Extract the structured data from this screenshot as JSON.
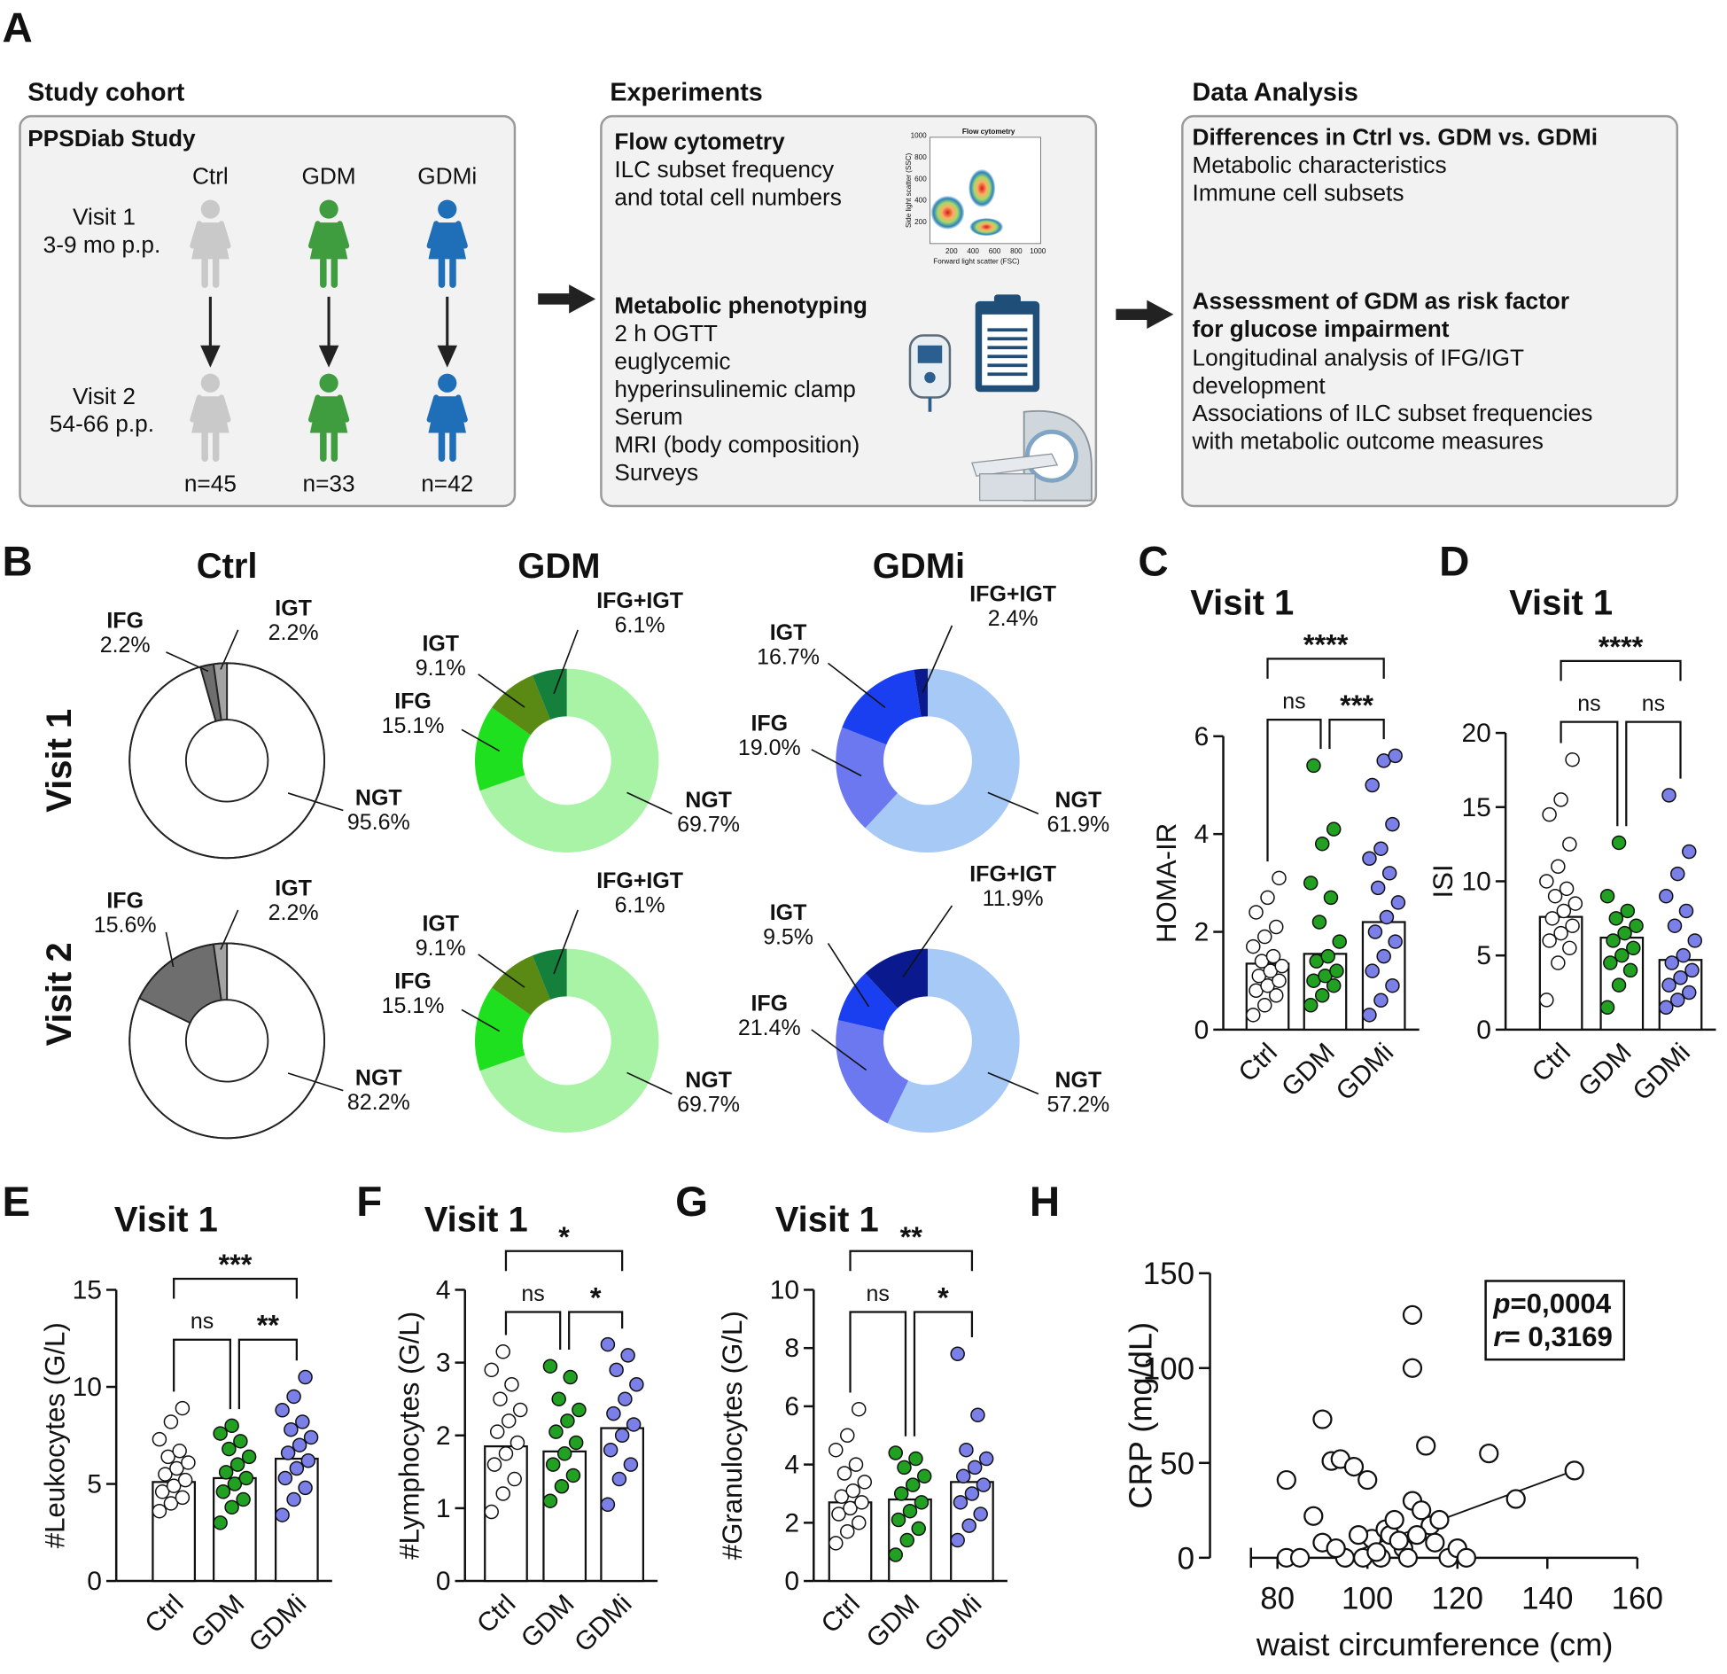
{
  "panel_labels": [
    "A",
    "B",
    "C",
    "D",
    "E",
    "F",
    "G",
    "H"
  ],
  "panel_a": {
    "sections": [
      "Study cohort",
      "Experiments",
      "Data Analysis"
    ],
    "cohort": {
      "title": "PPSDiab Study",
      "groups": [
        "Ctrl",
        "GDM",
        "GDMi"
      ],
      "group_colors": [
        "#c9c9c9",
        "#3f9d3f",
        "#1f6fb8"
      ],
      "visits": [
        {
          "name": "Visit 1",
          "time": "3-9 mo p.p."
        },
        {
          "name": "Visit 2",
          "time": "54-66 p.p."
        }
      ],
      "n": [
        "n=45",
        "n=33",
        "n=42"
      ]
    },
    "experiments": [
      {
        "heading": "Flow cytometry",
        "lines": [
          "ILC subset frequency",
          "and total cell numbers"
        ]
      },
      {
        "heading": "Metabolic phenotyping",
        "lines": [
          "2 h OGTT",
          "euglycemic",
          "hyperinsulinemic clamp",
          "Serum",
          "MRI (body composition)",
          "Surveys"
        ]
      }
    ],
    "flow_inset": {
      "title": "Flow cytometry",
      "xlabel": "Forward light scatter (FSC)",
      "ylabel": "Side light scatter (SSC)",
      "xticks": [
        "200",
        "400",
        "600",
        "800",
        "1000"
      ],
      "yticks": [
        "200",
        "400",
        "600",
        "800",
        "1000"
      ]
    },
    "analysis": [
      {
        "heading": [
          "Differences in Ctrl vs. GDM vs. GDMi"
        ],
        "lines": [
          "Metabolic characteristics",
          "Immune cell subsets"
        ]
      },
      {
        "heading": [
          "Assessment of GDM as risk factor",
          "for glucose impairment"
        ],
        "lines": [
          "Longitudinal analysis of IFG/IGT",
          "development",
          "Associations of ILC subset frequencies",
          "with metabolic outcome measures"
        ]
      }
    ]
  },
  "panel_b": {
    "column_titles": [
      "Ctrl",
      "GDM",
      "GDMi"
    ],
    "row_titles": [
      "Visit 1",
      "Visit 2"
    ]
  },
  "chart_data": [
    {
      "type": "pie",
      "categories": [
        "NGT",
        "IFG",
        "IGT"
      ],
      "values": [
        95.6,
        2.2,
        2.2
      ],
      "value_labels": [
        "95.6%",
        "2.2%",
        "2.2%"
      ],
      "colors": [
        "#ffffff",
        "#6e6e6e",
        "#a3a3a3"
      ]
    },
    {
      "type": "pie",
      "categories": [
        "NGT",
        "IFG",
        "IGT",
        "IFG+IGT"
      ],
      "values": [
        69.7,
        15.1,
        9.1,
        6.1
      ],
      "value_labels": [
        "69.7%",
        "15.1%",
        "9.1%",
        "6.1%"
      ],
      "colors": [
        "#a9f3a6",
        "#1fe01f",
        "#5a8a14",
        "#14803c"
      ]
    },
    {
      "type": "pie",
      "categories": [
        "NGT",
        "IFG",
        "IGT",
        "IFG+IGT"
      ],
      "values": [
        61.9,
        19.0,
        16.7,
        2.4
      ],
      "value_labels": [
        "61.9%",
        "19.0%",
        "16.7%",
        "2.4%"
      ],
      "colors": [
        "#a7c9f5",
        "#6b78ef",
        "#1a3ff0",
        "#0a1a8e"
      ]
    },
    {
      "type": "pie",
      "categories": [
        "NGT",
        "IFG",
        "IGT"
      ],
      "values": [
        82.2,
        15.6,
        2.2
      ],
      "value_labels": [
        "82.2%",
        "15.6%",
        "2.2%"
      ],
      "colors": [
        "#ffffff",
        "#6e6e6e",
        "#a3a3a3"
      ]
    },
    {
      "type": "pie",
      "categories": [
        "NGT",
        "IFG",
        "IGT",
        "IFG+IGT"
      ],
      "values": [
        69.7,
        15.1,
        9.1,
        6.1
      ],
      "value_labels": [
        "69.7%",
        "15.1%",
        "9.1%",
        "6.1%"
      ],
      "colors": [
        "#a9f3a6",
        "#1fe01f",
        "#5a8a14",
        "#14803c"
      ]
    },
    {
      "type": "pie",
      "categories": [
        "NGT",
        "IFG",
        "IGT",
        "IFG+IGT"
      ],
      "values": [
        57.2,
        21.4,
        9.5,
        11.9
      ],
      "value_labels": [
        "57.2%",
        "21.4%",
        "9.5%",
        "11.9%"
      ],
      "colors": [
        "#a7c9f5",
        "#6b78ef",
        "#1a3ff0",
        "#0a1a8e"
      ]
    },
    {
      "type": "bar",
      "title": "Visit 1",
      "ylabel": "HOMA-IR",
      "categories": [
        "Ctrl",
        "GDM",
        "GDMi"
      ],
      "values": [
        1.35,
        1.55,
        2.2
      ],
      "colors": [
        "#ffffff",
        "#22a022",
        "#7b7fe8"
      ],
      "points": [
        [
          0.3,
          0.5,
          0.7,
          0.8,
          0.9,
          1.0,
          1.1,
          1.2,
          1.3,
          1.4,
          1.5,
          1.7,
          1.9,
          2.1,
          2.4,
          2.7,
          3.1
        ],
        [
          0.5,
          0.7,
          0.9,
          1.0,
          1.1,
          1.2,
          1.4,
          1.5,
          1.8,
          2.2,
          2.7,
          3.0,
          3.8,
          4.1,
          5.4
        ],
        [
          0.3,
          0.6,
          0.9,
          1.2,
          1.5,
          1.8,
          2.0,
          2.3,
          2.6,
          2.9,
          3.2,
          3.5,
          3.7,
          4.2,
          5.0,
          5.5,
          5.6
        ]
      ],
      "ylim": [
        0,
        6
      ],
      "yticks": [
        0,
        2,
        4,
        6
      ],
      "significance": [
        {
          "groups": [
            "Ctrl",
            "GDM"
          ],
          "label": "ns"
        },
        {
          "groups": [
            "GDM",
            "GDMi"
          ],
          "label": "***"
        },
        {
          "groups": [
            "Ctrl",
            "GDMi"
          ],
          "label": "****"
        }
      ]
    },
    {
      "type": "bar",
      "title": "Visit 1",
      "ylabel": "ISI",
      "categories": [
        "Ctrl",
        "GDM",
        "GDMi"
      ],
      "values": [
        7.6,
        6.2,
        4.7
      ],
      "colors": [
        "#ffffff",
        "#22a022",
        "#7b7fe8"
      ],
      "points": [
        [
          2.0,
          4.5,
          5.5,
          6.0,
          6.5,
          7.0,
          7.5,
          8.0,
          8.5,
          9.0,
          9.5,
          10.0,
          11.0,
          12.5,
          14.5,
          15.5,
          18.2
        ],
        [
          1.5,
          3.0,
          4.0,
          4.5,
          5.0,
          5.5,
          6.0,
          6.5,
          7.0,
          7.5,
          8.0,
          9.0,
          12.6
        ],
        [
          1.5,
          2.0,
          2.5,
          3.0,
          3.5,
          4.0,
          4.5,
          5.0,
          6.0,
          7.0,
          8.0,
          9.0,
          10.5,
          12.0,
          15.8
        ]
      ],
      "ylim": [
        0,
        20
      ],
      "yticks": [
        0,
        5,
        10,
        15,
        20
      ],
      "significance": [
        {
          "groups": [
            "Ctrl",
            "GDM"
          ],
          "label": "ns"
        },
        {
          "groups": [
            "GDM",
            "GDMi"
          ],
          "label": "ns"
        },
        {
          "groups": [
            "Ctrl",
            "GDMi"
          ],
          "label": "****"
        }
      ]
    },
    {
      "type": "bar",
      "title": "Visit 1",
      "ylabel": "#Leukocytes (G/L)",
      "categories": [
        "Ctrl",
        "GDM",
        "GDMi"
      ],
      "values": [
        5.1,
        5.3,
        6.3
      ],
      "colors": [
        "#ffffff",
        "#22a022",
        "#7b7fe8"
      ],
      "points": [
        [
          3.6,
          4.0,
          4.3,
          4.6,
          4.9,
          5.2,
          5.5,
          5.8,
          6.1,
          6.4,
          6.7,
          7.3,
          8.2,
          8.9
        ],
        [
          3.0,
          3.8,
          4.2,
          4.6,
          5.0,
          5.3,
          5.6,
          6.0,
          6.4,
          6.8,
          7.2,
          7.6,
          8.0
        ],
        [
          3.4,
          4.2,
          4.8,
          5.3,
          5.8,
          6.2,
          6.6,
          7.0,
          7.4,
          7.8,
          8.2,
          8.8,
          9.5,
          10.5
        ]
      ],
      "ylim": [
        0,
        15
      ],
      "yticks": [
        0,
        5,
        10,
        15
      ],
      "significance": [
        {
          "groups": [
            "Ctrl",
            "GDM"
          ],
          "label": "ns"
        },
        {
          "groups": [
            "GDM",
            "GDMi"
          ],
          "label": "**"
        },
        {
          "groups": [
            "Ctrl",
            "GDMi"
          ],
          "label": "***"
        }
      ]
    },
    {
      "type": "bar",
      "title": "Visit 1",
      "ylabel": "#Lymphocytes (G/L)",
      "categories": [
        "Ctrl",
        "GDM",
        "GDMi"
      ],
      "values": [
        1.85,
        1.78,
        2.1
      ],
      "colors": [
        "#ffffff",
        "#22a022",
        "#7b7fe8"
      ],
      "points": [
        [
          0.95,
          1.2,
          1.4,
          1.6,
          1.75,
          1.9,
          2.05,
          2.2,
          2.35,
          2.5,
          2.7,
          2.9,
          3.15
        ],
        [
          1.1,
          1.3,
          1.45,
          1.6,
          1.75,
          1.9,
          2.05,
          2.2,
          2.35,
          2.5,
          2.8,
          2.95
        ],
        [
          1.05,
          1.4,
          1.6,
          1.8,
          2.0,
          2.15,
          2.3,
          2.5,
          2.7,
          2.9,
          3.1,
          3.25
        ]
      ],
      "ylim": [
        0,
        4
      ],
      "yticks": [
        0,
        1,
        2,
        3,
        4
      ],
      "significance": [
        {
          "groups": [
            "Ctrl",
            "GDM"
          ],
          "label": "ns"
        },
        {
          "groups": [
            "GDM",
            "GDMi"
          ],
          "label": "*"
        },
        {
          "groups": [
            "Ctrl",
            "GDMi"
          ],
          "label": "*"
        }
      ]
    },
    {
      "type": "bar",
      "title": "Visit 1",
      "ylabel": "#Granulocytes (G/L)",
      "categories": [
        "Ctrl",
        "GDM",
        "GDMi"
      ],
      "values": [
        2.7,
        2.8,
        3.4
      ],
      "colors": [
        "#ffffff",
        "#22a022",
        "#7b7fe8"
      ],
      "points": [
        [
          1.3,
          1.7,
          2.0,
          2.3,
          2.5,
          2.7,
          2.9,
          3.1,
          3.4,
          3.7,
          4.0,
          4.5,
          5.0,
          5.9
        ],
        [
          0.9,
          1.4,
          1.8,
          2.1,
          2.4,
          2.7,
          3.0,
          3.3,
          3.6,
          3.9,
          4.2,
          4.4
        ],
        [
          1.4,
          1.9,
          2.3,
          2.7,
          3.0,
          3.3,
          3.6,
          3.9,
          4.2,
          4.5,
          5.7,
          7.8
        ]
      ],
      "ylim": [
        0,
        10
      ],
      "yticks": [
        0,
        2,
        4,
        6,
        8,
        10
      ],
      "significance": [
        {
          "groups": [
            "Ctrl",
            "GDM"
          ],
          "label": "ns"
        },
        {
          "groups": [
            "GDM",
            "GDMi"
          ],
          "label": "*"
        },
        {
          "groups": [
            "Ctrl",
            "GDMi"
          ],
          "label": "**"
        }
      ]
    },
    {
      "type": "scatter",
      "xlabel": "waist circumference (cm)",
      "ylabel": "CRP (mg/dL)",
      "x": [
        82,
        82,
        88,
        90,
        90,
        92,
        94,
        97,
        99,
        100,
        101,
        103,
        104,
        105,
        106,
        108,
        109,
        110,
        110,
        110,
        112,
        113,
        114,
        115,
        118,
        120,
        122,
        127,
        133,
        146,
        85,
        95,
        98,
        107,
        111,
        116,
        93,
        102
      ],
      "y": [
        0,
        41,
        22,
        8,
        73,
        51,
        52,
        48,
        0,
        41,
        10,
        0,
        15,
        12,
        20,
        5,
        0,
        100,
        128,
        30,
        25,
        59,
        17,
        8,
        0,
        5,
        0,
        55,
        31,
        46,
        0,
        0,
        12,
        9,
        12,
        20,
        5,
        3
      ],
      "xlim": [
        65,
        160
      ],
      "xticks": [
        80,
        100,
        120,
        140,
        160
      ],
      "ylim": [
        0,
        150
      ],
      "yticks": [
        0,
        50,
        100,
        150
      ],
      "fit": {
        "x": [
          98,
          146
        ],
        "y": [
          4,
          46
        ]
      },
      "stats": [
        {
          "symbol": "p",
          "text": "=0,0004"
        },
        {
          "symbol": "r",
          "text": "= 0,3169"
        }
      ]
    }
  ]
}
